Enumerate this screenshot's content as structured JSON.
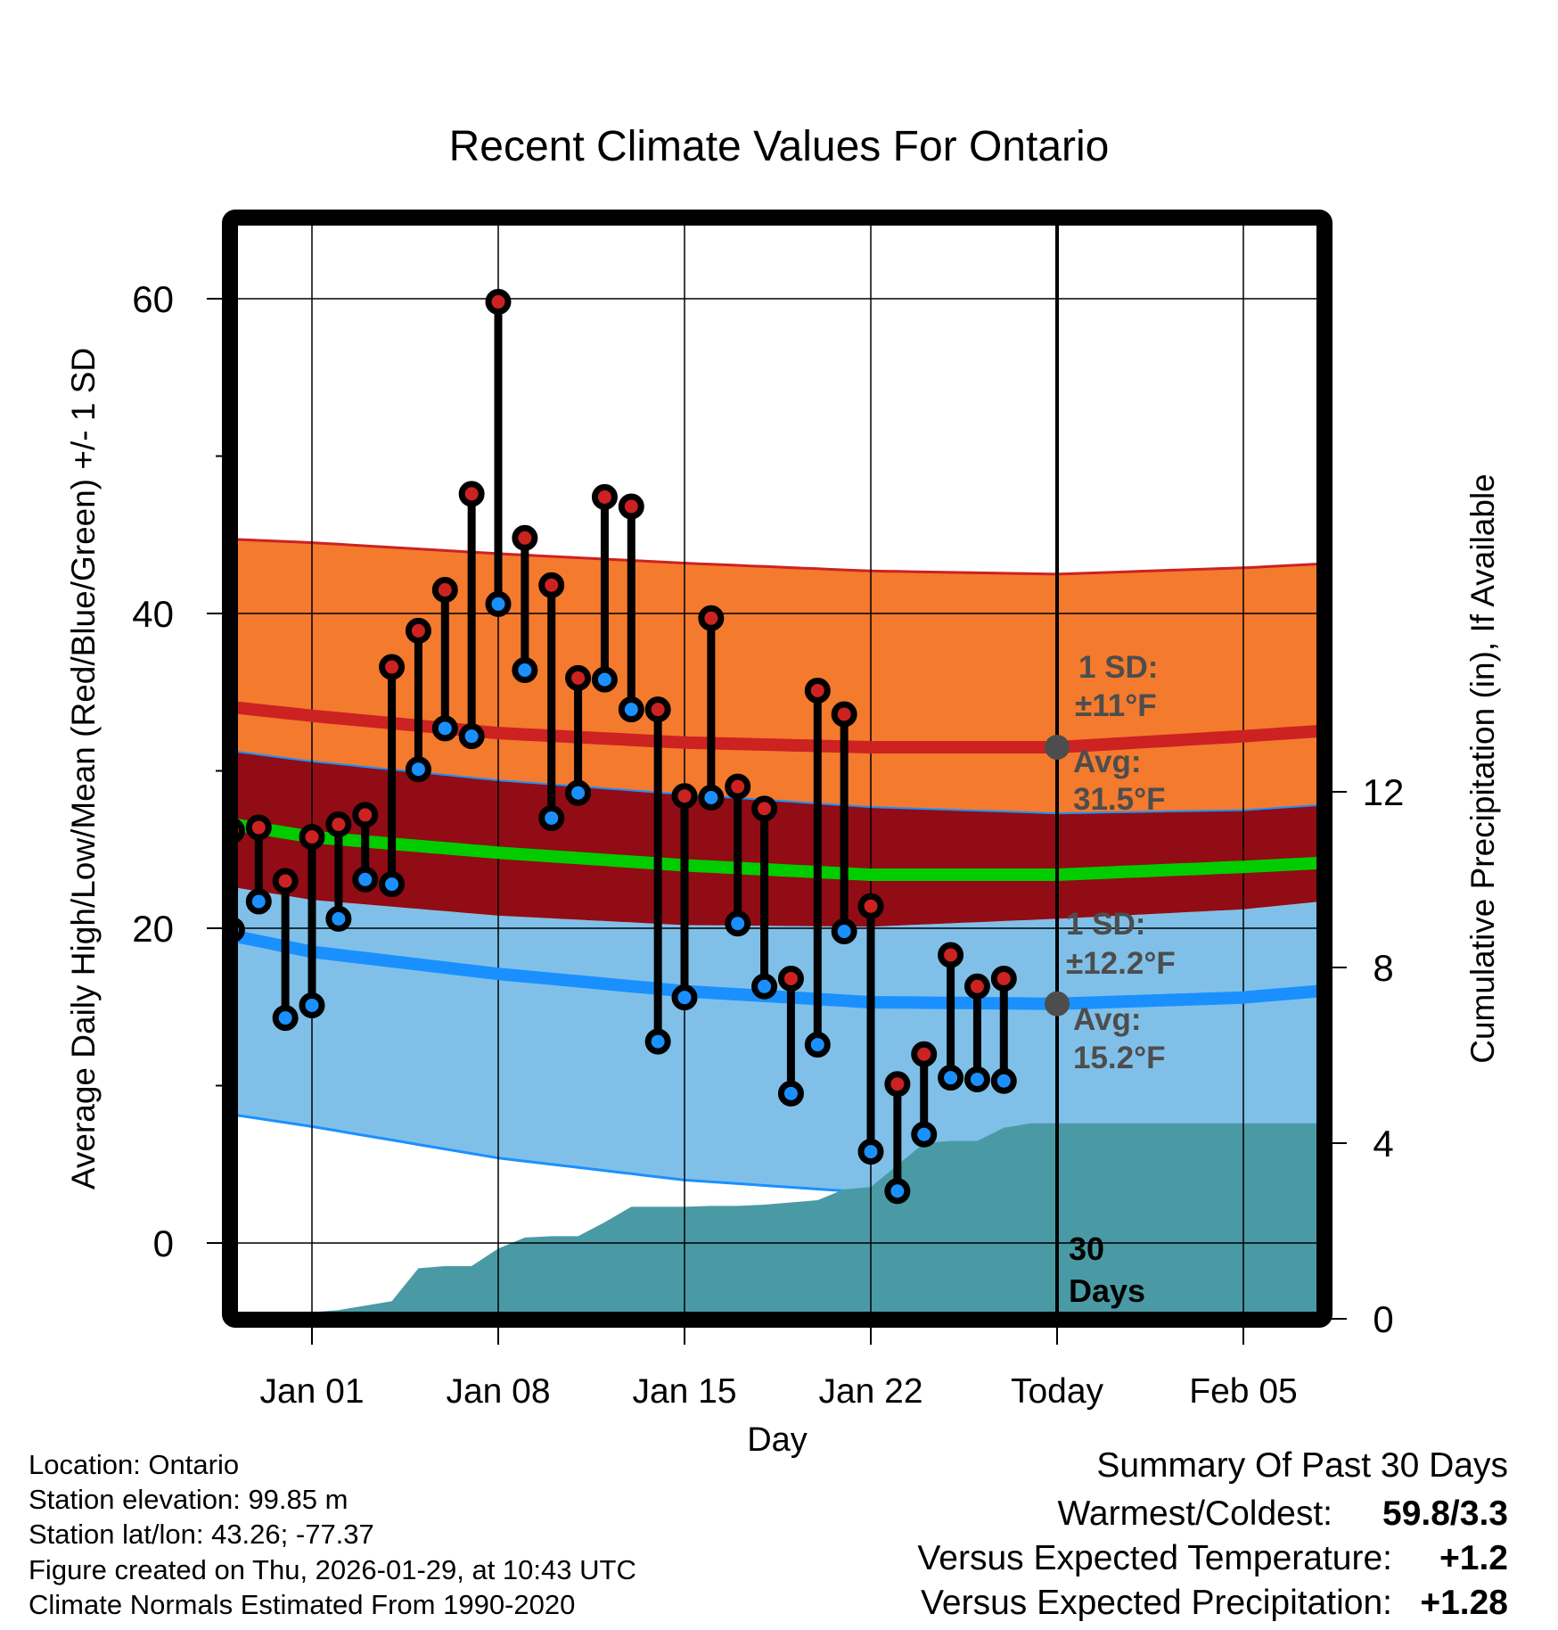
{
  "chart_data": {
    "type": "line",
    "title": "Recent Climate Values For Ontario",
    "xlabel": "Day",
    "ylabel": "Average Daily High/Low/Mean (Red/Blue/Green) +/- 1 SD",
    "y2label": "Cumulative Precipitation (in), If Available",
    "ylim": [
      -4,
      66
    ],
    "y2lim": [
      0,
      20.9
    ],
    "yticks": [
      0,
      20,
      40,
      60
    ],
    "yminor_ticks": [
      10,
      30,
      50
    ],
    "y2ticks": [
      0,
      4,
      8,
      12
    ],
    "x_day_range": [
      -2.5,
      41.5
    ],
    "x_ticks": [
      {
        "day": 3,
        "label": "Jan 01"
      },
      {
        "day": 10,
        "label": "Jan 08"
      },
      {
        "day": 17,
        "label": "Jan 15"
      },
      {
        "day": 24,
        "label": "Jan 22"
      },
      {
        "day": 31,
        "label": "Today"
      },
      {
        "day": 38,
        "label": "Feb 05"
      }
    ],
    "grid": true,
    "today_day": 31,
    "today_label": "30 Days",
    "daily_high": [
      26.2,
      26.4,
      23.0,
      25.8,
      26.6,
      27.2,
      36.6,
      38.9,
      41.5,
      47.6,
      59.8,
      44.8,
      41.8,
      35.9,
      47.4,
      46.8,
      33.9,
      28.4,
      39.7,
      29.0,
      27.6,
      16.8,
      35.1,
      33.6,
      21.4,
      10.1,
      12.0,
      18.3,
      16.3,
      16.8
    ],
    "daily_low": [
      19.9,
      21.7,
      14.3,
      15.1,
      20.6,
      23.1,
      22.8,
      30.1,
      32.7,
      32.2,
      40.6,
      36.4,
      27.0,
      28.6,
      35.8,
      33.9,
      12.8,
      15.6,
      28.3,
      20.3,
      16.3,
      9.5,
      12.6,
      19.8,
      5.8,
      3.3,
      6.9,
      10.5,
      10.4,
      10.3
    ],
    "normal_high": {
      "days": [
        -2.5,
        3,
        10,
        17,
        24,
        31,
        38,
        41.5
      ],
      "avg": [
        34.5,
        33.5,
        32.4,
        31.8,
        31.5,
        31.5,
        32.2,
        32.6
      ],
      "upper": [
        44.9,
        44.5,
        43.8,
        43.2,
        42.7,
        42.5,
        42.9,
        43.2
      ],
      "lower": [
        31.8,
        30.6,
        29.4,
        28.5,
        27.7,
        27.3,
        27.5,
        27.9
      ]
    },
    "normal_mean": {
      "days": [
        -2.5,
        3,
        10,
        17,
        24,
        31,
        38,
        41.5
      ],
      "avg": [
        27.3,
        25.8,
        24.8,
        24.0,
        23.4,
        23.4,
        23.9,
        24.2
      ]
    },
    "normal_low": {
      "days": [
        -2.5,
        3,
        10,
        17,
        24,
        31,
        38,
        41.5
      ],
      "avg": [
        20.4,
        18.5,
        17.1,
        16.0,
        15.3,
        15.2,
        15.6,
        16.1
      ],
      "upper": [
        23.3,
        21.8,
        20.8,
        20.2,
        20.1,
        20.6,
        21.2,
        21.8
      ],
      "lower": [
        8.8,
        7.4,
        5.4,
        4.0,
        3.2,
        3.6,
        4.8,
        5.2
      ]
    },
    "precip_cumulative": {
      "days": [
        -1,
        0,
        1,
        2,
        3,
        4,
        5,
        6,
        7,
        8,
        9,
        10,
        11,
        12,
        13,
        14,
        15,
        16,
        17,
        18,
        19,
        20,
        21,
        22,
        23,
        24,
        25,
        26,
        27,
        28,
        29,
        30,
        31,
        41.5
      ],
      "values": [
        0.0,
        0.15,
        0.15,
        0.15,
        0.15,
        0.2,
        0.3,
        0.4,
        1.15,
        1.2,
        1.2,
        1.6,
        1.85,
        1.88,
        1.88,
        2.2,
        2.55,
        2.55,
        2.55,
        2.57,
        2.57,
        2.6,
        2.65,
        2.7,
        2.95,
        3.0,
        3.5,
        4.0,
        4.05,
        4.05,
        4.35,
        4.45,
        4.45,
        4.45
      ]
    },
    "annotations": {
      "high_sd": [
        "1 SD:",
        "±11°F"
      ],
      "high_avg": [
        "Avg:",
        "31.5°F"
      ],
      "low_sd": [
        "1 SD:",
        "±12.2°F"
      ],
      "low_avg": [
        "Avg:",
        "15.2°F"
      ]
    },
    "colors": {
      "high_band": "#f47a2e",
      "overlap_band": "#910c14",
      "low_band": "#80c0e8",
      "high_line": "#cc2222",
      "low_line": "#1a90ff",
      "mean_line": "#00cc00",
      "precip": "#4a9aa5",
      "high_dot": "#cc2222",
      "low_dot": "#1a90ff",
      "annotation": "#4d4d4d",
      "positive_temp": "#cc2222",
      "positive_precip": "#11bb11"
    }
  },
  "info": {
    "lines": [
      "Location: Ontario",
      "Station elevation: 99.85 m",
      "Station lat/lon: 43.26; -77.37",
      "Figure created on Thu, 2026-01-29, at 10:43 UTC",
      "Climate Normals Estimated From 1990-2020"
    ]
  },
  "summary": {
    "title": "Summary Of Past 30 Days",
    "warmest_coldest_label": "Warmest/Coldest:",
    "warmest_coldest_value": "59.8/3.3",
    "temp_label": "Versus Expected Temperature:",
    "temp_value": "+1.2",
    "precip_label": "Versus Expected Precipitation:",
    "precip_value": "+1.28"
  }
}
